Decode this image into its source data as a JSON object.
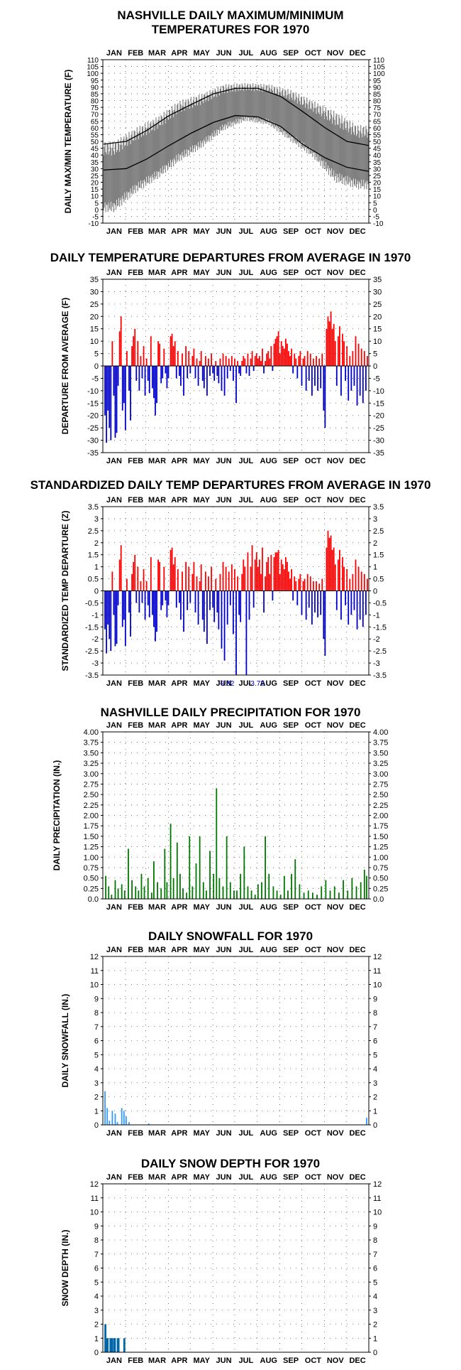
{
  "chart_data": [
    {
      "type": "line",
      "title_line1": "NASHVILLE DAILY MAXIMUM/MINIMUM",
      "title_line2": "TEMPERATURES FOR 1970",
      "ylabel": "DAILY MAX/MIN TEMPERATURE (F)",
      "months": [
        "JAN",
        "FEB",
        "MAR",
        "APR",
        "MAY",
        "JUN",
        "JUL",
        "AUG",
        "SEP",
        "OCT",
        "NOV",
        "DEC"
      ],
      "ylim": [
        -10,
        110
      ],
      "yticks": [
        -10,
        -5,
        0,
        5,
        10,
        15,
        20,
        25,
        30,
        35,
        40,
        45,
        50,
        55,
        60,
        65,
        70,
        75,
        80,
        85,
        90,
        95,
        100,
        105,
        110
      ],
      "grid": true,
      "series": [
        {
          "kind": "observed-range",
          "color": "#808080",
          "monthly_high": [
            50,
            60,
            68,
            80,
            85,
            92,
            93,
            92,
            88,
            80,
            72,
            62
          ],
          "monthly_low": [
            -2,
            12,
            22,
            35,
            45,
            58,
            65,
            62,
            50,
            38,
            20,
            15
          ]
        },
        {
          "kind": "normal-high",
          "color": "#000000",
          "x_day": [
            1,
            32,
            60,
            91,
            121,
            152,
            182,
            213,
            244,
            274,
            305,
            335,
            365
          ],
          "values": [
            48,
            50,
            58,
            69,
            77,
            85,
            89,
            89,
            83,
            72,
            60,
            50,
            47
          ]
        },
        {
          "kind": "normal-low",
          "color": "#000000",
          "x_day": [
            1,
            32,
            60,
            91,
            121,
            152,
            182,
            213,
            244,
            274,
            305,
            335,
            365
          ],
          "values": [
            29,
            30,
            37,
            47,
            56,
            64,
            69,
            68,
            61,
            48,
            38,
            31,
            28
          ]
        }
      ]
    },
    {
      "type": "bar",
      "title": "DAILY TEMPERATURE DEPARTURES FROM AVERAGE IN 1970",
      "ylabel": "DEPARTURE FROM AVERAGE (F)",
      "months": [
        "JAN",
        "FEB",
        "MAR",
        "APR",
        "MAY",
        "JUN",
        "JUL",
        "AUG",
        "SEP",
        "OCT",
        "NOV",
        "DEC"
      ],
      "ylim": [
        -35,
        35
      ],
      "yticks": [
        -35,
        -30,
        -25,
        -20,
        -15,
        -10,
        -5,
        0,
        5,
        10,
        15,
        20,
        25,
        30,
        35
      ],
      "grid": true,
      "positive_color": "#ff0000",
      "negative_color": "#0000cc",
      "x_day": [
        3,
        5,
        7,
        9,
        11,
        13,
        15,
        17,
        19,
        21,
        23,
        25,
        27,
        29,
        31,
        33,
        36,
        38,
        40,
        42,
        44,
        46,
        48,
        50,
        52,
        54,
        56,
        58,
        60,
        62,
        64,
        66,
        68,
        70,
        72,
        74,
        76,
        78,
        80,
        82,
        84,
        86,
        88,
        90,
        93,
        95,
        97,
        99,
        101,
        103,
        105,
        107,
        109,
        111,
        114,
        116,
        118,
        120,
        123,
        125,
        127,
        129,
        131,
        133,
        135,
        137,
        139,
        141,
        143,
        145,
        147,
        149,
        151,
        153,
        155,
        157,
        159,
        161,
        163,
        165,
        167,
        169,
        171,
        173,
        175,
        177,
        179,
        181,
        183,
        185,
        187,
        189,
        191,
        193,
        195,
        197,
        199,
        201,
        203,
        205,
        207,
        209,
        211,
        213,
        215,
        217,
        219,
        221,
        223,
        225,
        227,
        229,
        231,
        233,
        235,
        237,
        239,
        241,
        243,
        245,
        247,
        249,
        251,
        253,
        255,
        257,
        259,
        261,
        263,
        265,
        267,
        269,
        271,
        273,
        275,
        277,
        279,
        281,
        283,
        285,
        287,
        289,
        291,
        293,
        295,
        297,
        299,
        301,
        303,
        305,
        307,
        309,
        311,
        313,
        315,
        317,
        319,
        321,
        323,
        325,
        327,
        329,
        331,
        333,
        335,
        337,
        339,
        341,
        343,
        345,
        347,
        349,
        351,
        353,
        355,
        357,
        359,
        361,
        363
      ],
      "values": [
        -20,
        -31,
        -18,
        -25,
        -30,
        10,
        -12,
        -29,
        -27,
        -8,
        14,
        20,
        -18,
        -15,
        -26,
        6,
        -10,
        -22,
        8,
        12,
        15,
        -6,
        10,
        -10,
        4,
        -5,
        8,
        -12,
        3,
        -6,
        -11,
        12,
        -9,
        -13,
        -20,
        -15,
        10,
        9,
        -7,
        -5,
        7,
        -3,
        -9,
        -5,
        12,
        13,
        8,
        10,
        -5,
        6,
        -4,
        -8,
        5,
        -12,
        8,
        -5,
        6,
        -3,
        4,
        7,
        -5,
        3,
        -8,
        2,
        6,
        -6,
        -9,
        4,
        -12,
        3,
        -4,
        5,
        -3,
        -6,
        2,
        -4,
        -7,
        3,
        -10,
        5,
        -12,
        4,
        -5,
        3,
        -2,
        4,
        -6,
        3,
        -15,
        2,
        -3,
        -4,
        2,
        4,
        3,
        -3,
        5,
        -4,
        3,
        6,
        -2,
        4,
        5,
        3,
        4,
        2,
        7,
        -3,
        2,
        5,
        6,
        3,
        8,
        -2,
        9,
        11,
        12,
        14,
        5,
        10,
        8,
        7,
        11,
        9,
        6,
        4,
        7,
        -3,
        5,
        3,
        -5,
        4,
        6,
        -8,
        3,
        4,
        -10,
        6,
        -6,
        5,
        -12,
        3,
        -8,
        4,
        -10,
        3,
        -9,
        5,
        -18,
        -25,
        15,
        20,
        18,
        22,
        15,
        17,
        10,
        -8,
        12,
        16,
        -12,
        13,
        10,
        -6,
        8,
        -14,
        4,
        -10,
        6,
        -8,
        12,
        -16,
        9,
        -12,
        7,
        -15,
        6,
        -10,
        4
      ]
    },
    {
      "type": "bar",
      "title": "STANDARDIZED DAILY TEMP DEPARTURES FROM AVERAGE IN 1970",
      "ylabel": "STANDARDIZED TEMP DEPARTURE (Z)",
      "months": [
        "JAN",
        "FEB",
        "MAR",
        "APR",
        "MAY",
        "JUN",
        "JUL",
        "AUG",
        "SEP",
        "OCT",
        "NOV",
        "DEC"
      ],
      "ylim": [
        -3.5,
        3.5
      ],
      "yticks": [
        -3.5,
        -3.0,
        -2.5,
        -2.0,
        -1.5,
        -1.0,
        -0.5,
        0.0,
        0.5,
        1.0,
        1.5,
        2.0,
        2.5,
        3.0,
        3.5
      ],
      "grid": true,
      "positive_color": "#ff0000",
      "negative_color": "#0000cc",
      "annotations": [
        "-3.82",
        "-3.72"
      ],
      "x_day": [
        3,
        5,
        7,
        9,
        11,
        13,
        15,
        17,
        19,
        21,
        23,
        25,
        27,
        29,
        31,
        33,
        36,
        38,
        40,
        42,
        44,
        46,
        48,
        50,
        52,
        54,
        56,
        58,
        60,
        62,
        64,
        66,
        68,
        70,
        72,
        74,
        76,
        78,
        80,
        82,
        84,
        86,
        88,
        90,
        93,
        95,
        97,
        99,
        101,
        103,
        105,
        107,
        109,
        111,
        114,
        116,
        118,
        120,
        123,
        125,
        127,
        129,
        131,
        133,
        135,
        137,
        139,
        141,
        143,
        145,
        147,
        149,
        151,
        153,
        155,
        157,
        159,
        161,
        163,
        165,
        167,
        169,
        171,
        173,
        175,
        177,
        179,
        181,
        183,
        185,
        187,
        189,
        191,
        193,
        195,
        197,
        199,
        201,
        203,
        205,
        207,
        209,
        211,
        213,
        215,
        217,
        219,
        221,
        223,
        225,
        227,
        229,
        231,
        233,
        235,
        237,
        239,
        241,
        243,
        245,
        247,
        249,
        251,
        253,
        255,
        257,
        259,
        261,
        263,
        265,
        267,
        269,
        271,
        273,
        275,
        277,
        279,
        281,
        283,
        285,
        287,
        289,
        291,
        293,
        295,
        297,
        299,
        301,
        303,
        305,
        307,
        309,
        311,
        313,
        315,
        317,
        319,
        321,
        323,
        325,
        327,
        329,
        331,
        333,
        335,
        337,
        339,
        341,
        343,
        345,
        347,
        349,
        351,
        353,
        355,
        357,
        359,
        361,
        363
      ],
      "values": [
        -1.6,
        -2.6,
        -1.4,
        -2.0,
        -2.5,
        0.8,
        -1.0,
        -2.3,
        -2.2,
        -0.6,
        1.3,
        1.9,
        -1.5,
        -1.2,
        -2.3,
        0.5,
        -0.9,
        -1.9,
        0.7,
        1.2,
        1.5,
        -0.5,
        1.0,
        -0.9,
        0.4,
        -0.5,
        0.9,
        -1.2,
        0.4,
        -0.6,
        -1.1,
        1.4,
        -1.0,
        -1.5,
        -2.1,
        -1.7,
        1.3,
        1.2,
        -0.8,
        -0.6,
        1.0,
        -0.4,
        -1.1,
        -0.6,
        1.7,
        1.8,
        1.1,
        1.4,
        -0.7,
        0.9,
        -0.5,
        -1.2,
        0.8,
        -1.7,
        1.2,
        -0.8,
        1.0,
        -0.5,
        0.7,
        1.2,
        -0.9,
        0.6,
        -1.4,
        0.4,
        1.1,
        -1.2,
        -1.7,
        0.8,
        -2.2,
        0.6,
        -0.8,
        1.0,
        -0.7,
        -1.3,
        0.5,
        -0.9,
        -1.6,
        0.7,
        -2.4,
        1.2,
        -2.9,
        1.0,
        -1.4,
        0.8,
        -0.6,
        1.1,
        -1.8,
        0.9,
        -3.82,
        0.6,
        -1.0,
        -1.3,
        0.7,
        1.3,
        1.0,
        -3.72,
        1.6,
        -1.2,
        1.0,
        1.9,
        -0.7,
        1.3,
        1.6,
        1.0,
        1.3,
        0.7,
        1.8,
        -0.9,
        0.6,
        1.2,
        1.4,
        0.7,
        1.5,
        -0.4,
        1.4,
        1.6,
        1.6,
        1.7,
        0.7,
        1.3,
        1.1,
        0.9,
        1.4,
        1.2,
        0.8,
        0.5,
        0.9,
        -0.4,
        0.6,
        0.4,
        -0.6,
        0.5,
        0.7,
        -1.0,
        0.4,
        0.5,
        -1.2,
        0.7,
        -0.7,
        0.6,
        -1.4,
        0.4,
        -0.9,
        0.4,
        -1.1,
        0.3,
        -1.0,
        0.5,
        -2.0,
        -2.7,
        1.8,
        2.5,
        2.2,
        2.3,
        1.7,
        1.8,
        1.1,
        -0.8,
        1.3,
        1.7,
        -1.2,
        1.4,
        1.0,
        -0.6,
        0.9,
        -1.4,
        0.5,
        -1.0,
        0.7,
        -0.8,
        1.3,
        -1.6,
        1.0,
        -1.2,
        0.8,
        -1.5,
        0.7,
        -1.0,
        0.5
      ]
    },
    {
      "type": "bar",
      "title": "NASHVILLE DAILY PRECIPITATION FOR 1970",
      "ylabel": "DAILY PRECIPITATION (IN.)",
      "months": [
        "JAN",
        "FEB",
        "MAR",
        "APR",
        "MAY",
        "JUN",
        "JUL",
        "AUG",
        "SEP",
        "OCT",
        "NOV",
        "DEC"
      ],
      "ylim": [
        0,
        4.0
      ],
      "yticks": [
        "0.0",
        "0.25",
        "0.50",
        "0.75",
        "1.00",
        "1.25",
        "1.50",
        "1.75",
        "2.00",
        "2.25",
        "2.50",
        "2.75",
        "3.00",
        "3.25",
        "3.50",
        "3.75",
        "4.00"
      ],
      "grid": true,
      "color": "#007700",
      "x_day": [
        4,
        8,
        12,
        17,
        21,
        26,
        30,
        35,
        40,
        45,
        49,
        53,
        57,
        62,
        67,
        70,
        75,
        80,
        85,
        88,
        93,
        97,
        102,
        106,
        110,
        115,
        119,
        123,
        128,
        133,
        138,
        142,
        147,
        152,
        156,
        160,
        165,
        170,
        175,
        180,
        184,
        189,
        194,
        199,
        204,
        209,
        213,
        218,
        223,
        228,
        234,
        239,
        244,
        249,
        254,
        259,
        264,
        270,
        276,
        282,
        288,
        294,
        300,
        306,
        312,
        318,
        324,
        330,
        336,
        342,
        348,
        354,
        359,
        362
      ],
      "values": [
        0.55,
        0.3,
        0.1,
        0.45,
        0.25,
        0.35,
        0.2,
        1.2,
        0.45,
        0.3,
        0.2,
        0.6,
        0.3,
        0.5,
        0.15,
        0.9,
        0.4,
        0.25,
        1.2,
        0.4,
        1.8,
        0.5,
        1.35,
        0.6,
        0.25,
        0.15,
        1.5,
        0.3,
        0.85,
        1.5,
        0.4,
        0.2,
        1.15,
        0.6,
        2.65,
        0.5,
        0.3,
        1.5,
        0.4,
        0.2,
        0.2,
        0.6,
        1.25,
        0.3,
        0.2,
        0.1,
        0.35,
        0.4,
        1.5,
        0.6,
        0.3,
        0.2,
        0.1,
        0.55,
        0.2,
        0.6,
        0.95,
        0.35,
        0.15,
        0.2,
        0.15,
        0.1,
        0.3,
        0.45,
        0.2,
        0.3,
        0.15,
        0.45,
        0.2,
        0.5,
        0.3,
        0.4,
        0.7,
        0.55
      ]
    },
    {
      "type": "bar",
      "title": "DAILY SNOWFALL FOR 1970",
      "ylabel": "DAILY SNOWFALL (IN.)",
      "months": [
        "JAN",
        "FEB",
        "MAR",
        "APR",
        "MAY",
        "JUN",
        "JUL",
        "AUG",
        "SEP",
        "OCT",
        "NOV",
        "DEC"
      ],
      "ylim": [
        0,
        12
      ],
      "yticks": [
        0,
        1,
        2,
        3,
        4,
        5,
        6,
        7,
        8,
        9,
        10,
        11,
        12
      ],
      "grid": true,
      "color": "#3399ff",
      "x_day": [
        3,
        6,
        9,
        13,
        17,
        20,
        26,
        29,
        32,
        36,
        63,
        362
      ],
      "values": [
        2.4,
        1.2,
        0.3,
        1.0,
        0.8,
        0.2,
        1.2,
        1.0,
        0.6,
        0.2,
        0.1,
        0.5
      ]
    },
    {
      "type": "bar",
      "title": "DAILY SNOW DEPTH FOR 1970",
      "ylabel": "SNOW DEPTH (IN.)",
      "months": [
        "JAN",
        "FEB",
        "MAR",
        "APR",
        "MAY",
        "JUN",
        "JUL",
        "AUG",
        "SEP",
        "OCT",
        "NOV",
        "DEC"
      ],
      "ylim": [
        0,
        12
      ],
      "yticks": [
        0,
        1,
        2,
        3,
        4,
        5,
        6,
        7,
        8,
        9,
        10,
        11,
        12
      ],
      "grid": true,
      "color": "#0066aa",
      "x_day": [
        3,
        4,
        5,
        6,
        7,
        10,
        11,
        12,
        13,
        15,
        16,
        17,
        20,
        21,
        22,
        29,
        30
      ],
      "values": [
        2,
        2,
        1,
        1,
        1,
        1,
        1,
        1,
        1,
        1,
        1,
        1,
        1,
        1,
        1,
        1,
        1
      ]
    }
  ]
}
